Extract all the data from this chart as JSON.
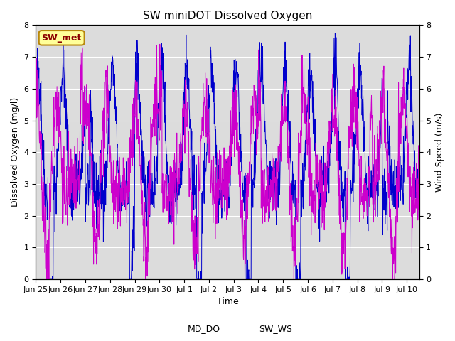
{
  "title": "SW miniDOT Dissolved Oxygen",
  "xlabel": "Time",
  "ylabel_left": "Dissolved Oxygen (mg/l)",
  "ylabel_right": "Wind Speed (m/s)",
  "ylim_left": [
    0.0,
    8.0
  ],
  "ylim_right": [
    0.0,
    8.0
  ],
  "yticks_left": [
    0.0,
    1.0,
    2.0,
    3.0,
    4.0,
    5.0,
    6.0,
    7.0,
    8.0
  ],
  "yticks_right": [
    0.0,
    1.0,
    2.0,
    3.0,
    4.0,
    5.0,
    6.0,
    7.0,
    8.0
  ],
  "color_do": "#0000cc",
  "color_ws": "#cc00cc",
  "legend_labels": [
    "MD_DO",
    "SW_WS"
  ],
  "annotation_text": "SW_met",
  "annotation_color": "#8b0000",
  "annotation_bg": "#ffff99",
  "annotation_border": "#b8860b",
  "plot_bg_color": "#dcdcdc",
  "fig_bg_color": "#ffffff",
  "grid_color": "#ffffff",
  "title_fontsize": 11,
  "axis_fontsize": 9,
  "tick_fontsize": 8,
  "legend_fontsize": 9,
  "xtick_labels": [
    "Jun 25",
    "Jun 26",
    "Jun 27",
    "Jun 28",
    "Jun 29",
    "Jun 30",
    "Jul 1",
    "Jul 2",
    "Jul 3",
    "Jul 4",
    "Jul 5",
    "Jul 6",
    "Jul 7",
    "Jul 8",
    "Jul 9",
    "Jul 10"
  ],
  "num_days": 15.5,
  "seed": 42
}
